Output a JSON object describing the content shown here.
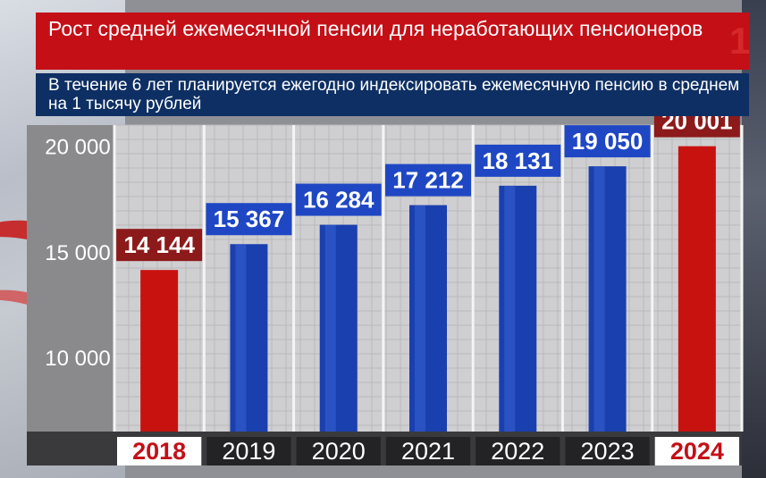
{
  "header": {
    "title": "Рост средней ежемесячной пенсии для неработающих пенсионеров",
    "subtitle": "В течение 6 лет планируется ежегодно индексировать ежемесячную пенсию в среднем на 1 тысячу рублей",
    "logo_text": "1"
  },
  "colors": {
    "accent_red": "#c40f17",
    "bar_blue": "#1a3fae",
    "bar_red": "#c8120f",
    "label_blue": "#1f47c4",
    "label_red": "#8c1a1a",
    "panel_gray": "#cfcfd1"
  },
  "chart_data": {
    "type": "bar",
    "title": "Рост средней ежемесячной пенсии для неработающих пенсионеров",
    "categories": [
      "2018",
      "2019",
      "2020",
      "2021",
      "2022",
      "2023",
      "2024"
    ],
    "values": [
      14144,
      15367,
      16284,
      17212,
      18131,
      19050,
      20001
    ],
    "value_labels": [
      "14 144",
      "15 367",
      "16 284",
      "17 212",
      "18 131",
      "19 050",
      "20 001"
    ],
    "highlight": [
      true,
      false,
      false,
      false,
      false,
      false,
      true
    ],
    "y_ticks": [
      10000,
      15000,
      20000
    ],
    "y_tick_labels": [
      "10 000",
      "15 000",
      "20 000"
    ],
    "ylim": [
      6500,
      21000
    ],
    "grid": true,
    "xlabel": "",
    "ylabel": ""
  }
}
